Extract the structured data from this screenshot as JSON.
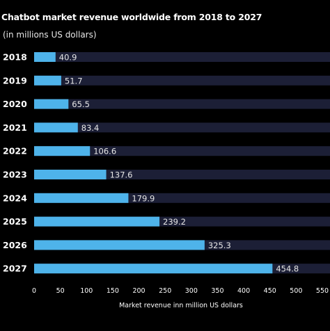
{
  "chart_data": {
    "type": "bar",
    "orientation": "horizontal",
    "title": "Chatbot market revenue worldwide from 2018 to 2027",
    "subtitle": "(in millions US dollars)",
    "xlabel": "Market revenue inn million US dollars",
    "ylabel": "",
    "categories": [
      "2018",
      "2019",
      "2020",
      "2021",
      "2022",
      "2023",
      "2024",
      "2025",
      "2026",
      "2027"
    ],
    "values": [
      40.9,
      51.7,
      65.5,
      83.4,
      106.6,
      137.6,
      179.9,
      239.2,
      325.3,
      454.8
    ],
    "value_labels": [
      "40.9",
      "51.7",
      "65.5",
      "83.4",
      "106.6",
      "137.6",
      "179.9",
      "239.2",
      "325.3",
      "454.8"
    ],
    "xlim": [
      0,
      550
    ],
    "xticks": [
      "0",
      "50",
      "100",
      "150",
      "200",
      "250",
      "300",
      "350",
      "400",
      "450",
      "500",
      "550"
    ],
    "grid": false,
    "legend": "none",
    "colors": {
      "background": "#000000",
      "bar": "#4eb3ea",
      "track": "#1c1f36",
      "text": "#ffffff"
    }
  }
}
